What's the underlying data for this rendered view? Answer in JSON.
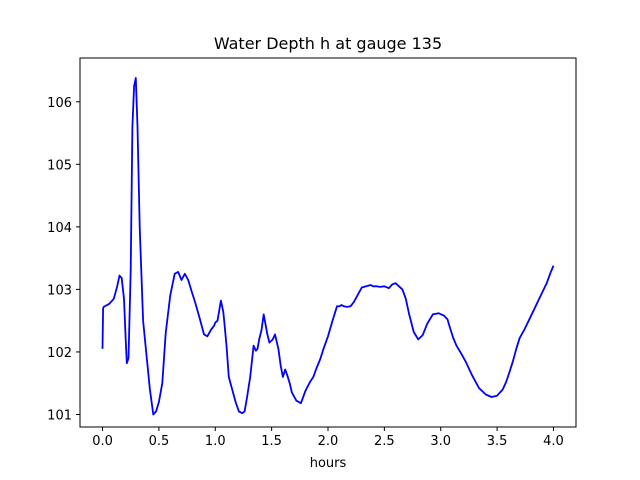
{
  "chart_data": {
    "type": "line",
    "title": "Water Depth h at gauge 135",
    "xlabel": "hours",
    "ylabel": "",
    "xlim": [
      -0.2,
      4.2
    ],
    "ylim": [
      100.8,
      106.7
    ],
    "xticks": [
      0.0,
      0.5,
      1.0,
      1.5,
      2.0,
      2.5,
      3.0,
      3.5,
      4.0
    ],
    "xtick_labels": [
      "0.0",
      "0.5",
      "1.0",
      "1.5",
      "2.0",
      "2.5",
      "3.0",
      "3.5",
      "4.0"
    ],
    "yticks": [
      101,
      102,
      103,
      104,
      105,
      106
    ],
    "ytick_labels": [
      "101",
      "102",
      "103",
      "104",
      "105",
      "106"
    ],
    "grid": false,
    "color": "#0000ff",
    "series": [
      {
        "name": "",
        "x": [
          0.0,
          0.005,
          0.01,
          0.06,
          0.1,
          0.13,
          0.15,
          0.17,
          0.19,
          0.205,
          0.215,
          0.23,
          0.25,
          0.265,
          0.28,
          0.295,
          0.31,
          0.33,
          0.36,
          0.39,
          0.42,
          0.45,
          0.475,
          0.5,
          0.53,
          0.56,
          0.6,
          0.64,
          0.67,
          0.7,
          0.73,
          0.76,
          0.79,
          0.82,
          0.86,
          0.9,
          0.93,
          0.96,
          0.99,
          1.0,
          1.02,
          1.05,
          1.07,
          1.08,
          1.1,
          1.12,
          1.15,
          1.18,
          1.21,
          1.24,
          1.26,
          1.28,
          1.31,
          1.34,
          1.36,
          1.375,
          1.39,
          1.41,
          1.43,
          1.45,
          1.46,
          1.48,
          1.51,
          1.53,
          1.56,
          1.58,
          1.6,
          1.62,
          1.64,
          1.66,
          1.68,
          1.72,
          1.76,
          1.8,
          1.84,
          1.87,
          1.9,
          1.93,
          1.96,
          2.0,
          2.04,
          2.08,
          2.1,
          2.12,
          2.14,
          2.17,
          2.2,
          2.23,
          2.26,
          2.3,
          2.34,
          2.38,
          2.4,
          2.43,
          2.46,
          2.5,
          2.54,
          2.57,
          2.6,
          2.63,
          2.66,
          2.69,
          2.72,
          2.76,
          2.8,
          2.84,
          2.88,
          2.93,
          2.98,
          3.03,
          3.06,
          3.08,
          3.11,
          3.14,
          3.18,
          3.22,
          3.28,
          3.34,
          3.4,
          3.45,
          3.5,
          3.55,
          3.58,
          3.61,
          3.64,
          3.67,
          3.7,
          3.74,
          3.78,
          3.82,
          3.86,
          3.9,
          3.94,
          3.97,
          4.0
        ],
        "values": [
          102.05,
          102.7,
          102.72,
          102.77,
          102.85,
          103.05,
          103.22,
          103.18,
          102.85,
          102.2,
          101.82,
          101.9,
          103.3,
          105.6,
          106.25,
          106.38,
          105.6,
          104.0,
          102.5,
          101.95,
          101.4,
          101.0,
          101.05,
          101.2,
          101.5,
          102.3,
          102.9,
          103.25,
          103.28,
          103.15,
          103.25,
          103.15,
          102.97,
          102.8,
          102.55,
          102.28,
          102.25,
          102.35,
          102.42,
          102.47,
          102.5,
          102.82,
          102.65,
          102.48,
          102.1,
          101.6,
          101.4,
          101.2,
          101.05,
          101.02,
          101.05,
          101.25,
          101.6,
          102.1,
          102.02,
          102.05,
          102.2,
          102.35,
          102.6,
          102.4,
          102.3,
          102.15,
          102.2,
          102.28,
          102.05,
          101.78,
          101.6,
          101.72,
          101.62,
          101.5,
          101.35,
          101.22,
          101.18,
          101.38,
          101.52,
          101.6,
          101.75,
          101.88,
          102.05,
          102.25,
          102.5,
          102.73,
          102.73,
          102.75,
          102.73,
          102.72,
          102.73,
          102.8,
          102.9,
          103.03,
          103.05,
          103.07,
          103.05,
          103.05,
          103.04,
          103.05,
          103.02,
          103.08,
          103.1,
          103.05,
          103.0,
          102.85,
          102.6,
          102.32,
          102.2,
          102.27,
          102.45,
          102.6,
          102.62,
          102.58,
          102.52,
          102.4,
          102.23,
          102.1,
          101.98,
          101.85,
          101.62,
          101.42,
          101.32,
          101.28,
          101.3,
          101.4,
          101.52,
          101.68,
          101.85,
          102.05,
          102.22,
          102.35,
          102.5,
          102.65,
          102.8,
          102.95,
          103.1,
          103.25,
          103.38
        ]
      }
    ]
  }
}
